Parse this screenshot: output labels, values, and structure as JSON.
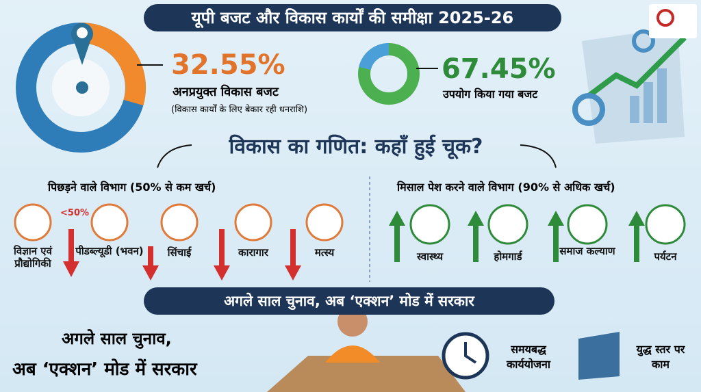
{
  "header": {
    "title": "यूपी बजट और विकास कार्यों की समीक्षा 2025-26"
  },
  "stats": [
    {
      "value": "32.55%",
      "label": "अनप्रयुक्त विकास बजट",
      "note": "(विकास कार्यों के लिए बेकार रही धनराशि)"
    },
    {
      "value": "67.45%",
      "label": "उपयोग किया गया बजट"
    }
  ],
  "section": {
    "title": "विकास का गणित: कहाँ हुई चूक?",
    "lagging": {
      "title": "पिछड़ने वाले विभाग (50% से कम खर्च)",
      "badge": "<50%",
      "items": [
        "विज्ञान एवं प्रौद्योगिकी",
        "पीडब्ल्यूडी (भवन)",
        "सिंचाई",
        "कारागार",
        "मत्स्य"
      ]
    },
    "leading": {
      "title": "मिसाल पेश करने वाले विभाग (90% से अधिक खर्च)",
      "items": [
        "स्वास्थ्य",
        "होमगार्ड",
        "समाज कल्याण",
        "पर्यटन"
      ]
    }
  },
  "banner": "अगले साल चुनाव, अब ‘एक्शन’ मोड में सरकार",
  "footer": {
    "lines": [
      "अगले साल चुनाव,",
      "अब ‘एक्शन’ मोड में सरकार"
    ],
    "features": [
      "समयबद्ध कार्ययोजना",
      "युद्ध स्तर पर काम"
    ]
  }
}
